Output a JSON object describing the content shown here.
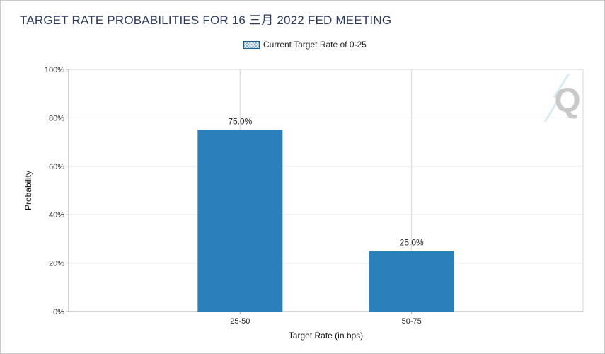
{
  "title": "TARGET RATE PROBABILITIES FOR 16 三月 2022 FED MEETING",
  "legend": {
    "label": "Current Target Rate of 0-25",
    "placement": "top-center"
  },
  "logo": {
    "letter": "Q"
  },
  "colors": {
    "bar": "#2b7fba",
    "title": "#2c3a5e",
    "grid": "#d4d4d4",
    "axis": "#aaaaaa"
  },
  "chart_data": {
    "type": "bar",
    "title": "TARGET RATE PROBABILITIES FOR 16 三月 2022 FED MEETING",
    "xlabel": "Target Rate (in bps)",
    "ylabel": "Probability",
    "categories": [
      "25-50",
      "50-75"
    ],
    "series": [
      {
        "name": "Current Target Rate of 0-25",
        "values": [
          75.0,
          25.0
        ]
      }
    ],
    "data_labels": [
      "75.0%",
      "25.0%"
    ],
    "ylim": [
      0,
      100
    ],
    "yticks": [
      0,
      20,
      40,
      60,
      80,
      100
    ],
    "ytick_labels": [
      "0%",
      "20%",
      "40%",
      "60%",
      "80%",
      "100%"
    ],
    "grid": true,
    "legend_placement": "top-center"
  }
}
